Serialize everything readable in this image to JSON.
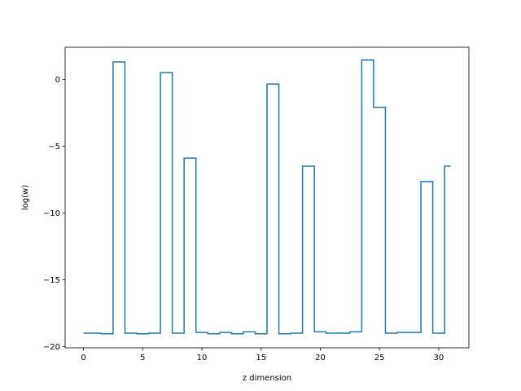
{
  "chart_data": {
    "type": "line",
    "drawstyle": "steps-mid",
    "xlabel": "z dimension",
    "ylabel": "log(w)",
    "xlim": [
      -1.55,
      32.55
    ],
    "ylim": [
      -20.1,
      2.4
    ],
    "xticks": [
      0,
      5,
      10,
      15,
      20,
      25,
      30
    ],
    "yticks": [
      -20,
      -15,
      -10,
      -5,
      0
    ],
    "grid": false,
    "series": [
      {
        "color": "#1f77b4",
        "x": [
          0,
          1,
          2,
          3,
          4,
          5,
          6,
          7,
          8,
          9,
          10,
          11,
          12,
          13,
          14,
          15,
          16,
          17,
          18,
          19,
          20,
          21,
          22,
          23,
          24,
          25,
          26,
          27,
          28,
          29,
          30,
          31
        ],
        "values": [
          -19.0,
          -19.0,
          -19.05,
          1.3,
          -19.0,
          -19.05,
          -19.0,
          0.5,
          -19.0,
          -5.9,
          -18.95,
          -19.05,
          -18.95,
          -19.05,
          -18.9,
          -19.05,
          -0.35,
          -19.05,
          -19.0,
          -6.5,
          -18.9,
          -19.0,
          -19.0,
          -18.9,
          1.45,
          -2.1,
          -19.0,
          -18.95,
          -18.95,
          -7.65,
          -19.0,
          -6.5
        ]
      }
    ]
  }
}
